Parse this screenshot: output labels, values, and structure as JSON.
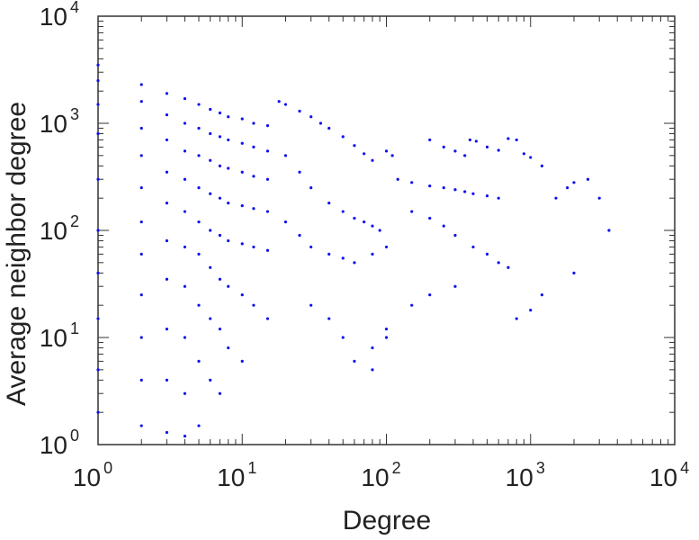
{
  "chart_data": {
    "type": "scatter",
    "title": "",
    "xlabel": "Degree",
    "ylabel": "Average neighbor degree",
    "xscale": "log",
    "yscale": "log",
    "xlim": [
      1,
      10000
    ],
    "ylim": [
      1,
      10000
    ],
    "grid": false,
    "legend": "none",
    "xticks": [
      {
        "base": "10",
        "exp": "0"
      },
      {
        "base": "10",
        "exp": "1"
      },
      {
        "base": "10",
        "exp": "2"
      },
      {
        "base": "10",
        "exp": "3"
      },
      {
        "base": "10",
        "exp": "4"
      }
    ],
    "yticks": [
      {
        "base": "10",
        "exp": "0"
      },
      {
        "base": "10",
        "exp": "1"
      },
      {
        "base": "10",
        "exp": "2"
      },
      {
        "base": "10",
        "exp": "3"
      },
      {
        "base": "10",
        "exp": "4"
      }
    ],
    "color": "#1010ee",
    "series": [
      {
        "points": [
          [
            1,
            3500
          ],
          [
            1,
            2500
          ],
          [
            1,
            1500
          ],
          [
            1,
            800
          ],
          [
            1,
            300
          ],
          [
            1,
            100
          ],
          [
            1,
            40
          ],
          [
            1,
            15
          ],
          [
            1,
            5
          ],
          [
            1,
            2
          ],
          [
            2,
            2300
          ],
          [
            2,
            1600
          ],
          [
            2,
            900
          ],
          [
            2,
            500
          ],
          [
            2,
            250
          ],
          [
            2,
            120
          ],
          [
            2,
            60
          ],
          [
            2,
            25
          ],
          [
            2,
            10
          ],
          [
            2,
            4
          ],
          [
            2,
            1.5
          ],
          [
            3,
            1900
          ],
          [
            3,
            1200
          ],
          [
            3,
            700
          ],
          [
            3,
            350
          ],
          [
            3,
            180
          ],
          [
            3,
            80
          ],
          [
            3,
            35
          ],
          [
            3,
            12
          ],
          [
            3,
            4
          ],
          [
            3,
            1.3
          ],
          [
            4,
            1700
          ],
          [
            4,
            1000
          ],
          [
            4,
            550
          ],
          [
            4,
            300
          ],
          [
            4,
            150
          ],
          [
            4,
            70
          ],
          [
            4,
            30
          ],
          [
            4,
            10
          ],
          [
            4,
            3
          ],
          [
            4,
            1.2
          ],
          [
            5,
            1500
          ],
          [
            5,
            900
          ],
          [
            5,
            500
          ],
          [
            5,
            250
          ],
          [
            5,
            120
          ],
          [
            5,
            60
          ],
          [
            5,
            20
          ],
          [
            5,
            6
          ],
          [
            5,
            1.5
          ],
          [
            6,
            1350
          ],
          [
            6,
            800
          ],
          [
            6,
            450
          ],
          [
            6,
            220
          ],
          [
            6,
            100
          ],
          [
            6,
            45
          ],
          [
            6,
            15
          ],
          [
            6,
            4
          ],
          [
            7,
            1250
          ],
          [
            7,
            750
          ],
          [
            7,
            400
          ],
          [
            7,
            200
          ],
          [
            7,
            90
          ],
          [
            7,
            35
          ],
          [
            7,
            12
          ],
          [
            7,
            3
          ],
          [
            8,
            1150
          ],
          [
            8,
            700
          ],
          [
            8,
            380
          ],
          [
            8,
            180
          ],
          [
            8,
            80
          ],
          [
            8,
            30
          ],
          [
            8,
            8
          ],
          [
            10,
            1100
          ],
          [
            10,
            650
          ],
          [
            10,
            350
          ],
          [
            10,
            170
          ],
          [
            10,
            75
          ],
          [
            10,
            25
          ],
          [
            10,
            6
          ],
          [
            12,
            1000
          ],
          [
            12,
            600
          ],
          [
            12,
            320
          ],
          [
            12,
            160
          ],
          [
            12,
            70
          ],
          [
            12,
            20
          ],
          [
            15,
            950
          ],
          [
            15,
            550
          ],
          [
            15,
            300
          ],
          [
            15,
            150
          ],
          [
            15,
            65
          ],
          [
            15,
            15
          ],
          [
            18,
            1600
          ],
          [
            20,
            1500
          ],
          [
            25,
            1300
          ],
          [
            30,
            1150
          ],
          [
            35,
            1000
          ],
          [
            40,
            900
          ],
          [
            50,
            750
          ],
          [
            60,
            620
          ],
          [
            70,
            520
          ],
          [
            80,
            450
          ],
          [
            20,
            500
          ],
          [
            25,
            350
          ],
          [
            30,
            250
          ],
          [
            40,
            180
          ],
          [
            50,
            150
          ],
          [
            60,
            130
          ],
          [
            70,
            120
          ],
          [
            80,
            110
          ],
          [
            90,
            100
          ],
          [
            20,
            120
          ],
          [
            25,
            90
          ],
          [
            30,
            70
          ],
          [
            40,
            60
          ],
          [
            50,
            55
          ],
          [
            60,
            50
          ],
          [
            80,
            60
          ],
          [
            100,
            70
          ],
          [
            120,
            300
          ],
          [
            150,
            280
          ],
          [
            200,
            260
          ],
          [
            250,
            250
          ],
          [
            300,
            240
          ],
          [
            350,
            230
          ],
          [
            400,
            220
          ],
          [
            500,
            210
          ],
          [
            600,
            200
          ],
          [
            100,
            550
          ],
          [
            110,
            500
          ],
          [
            200,
            700
          ],
          [
            250,
            600
          ],
          [
            300,
            550
          ],
          [
            350,
            500
          ],
          [
            380,
            700
          ],
          [
            420,
            680
          ],
          [
            500,
            600
          ],
          [
            600,
            560
          ],
          [
            700,
            720
          ],
          [
            800,
            700
          ],
          [
            900,
            520
          ],
          [
            1000,
            480
          ],
          [
            1200,
            400
          ],
          [
            150,
            150
          ],
          [
            200,
            130
          ],
          [
            250,
            110
          ],
          [
            300,
            90
          ],
          [
            400,
            70
          ],
          [
            500,
            60
          ],
          [
            600,
            50
          ],
          [
            700,
            45
          ],
          [
            30,
            20
          ],
          [
            40,
            15
          ],
          [
            50,
            10
          ],
          [
            80,
            8
          ],
          [
            100,
            12
          ],
          [
            150,
            20
          ],
          [
            200,
            25
          ],
          [
            300,
            30
          ],
          [
            60,
            6
          ],
          [
            80,
            5
          ],
          [
            100,
            10
          ],
          [
            800,
            15
          ],
          [
            1000,
            18
          ],
          [
            1200,
            25
          ],
          [
            2000,
            40
          ],
          [
            2500,
            300
          ],
          [
            3000,
            200
          ],
          [
            3500,
            100
          ],
          [
            1500,
            200
          ],
          [
            1800,
            250
          ],
          [
            2000,
            280
          ]
        ]
      }
    ]
  }
}
